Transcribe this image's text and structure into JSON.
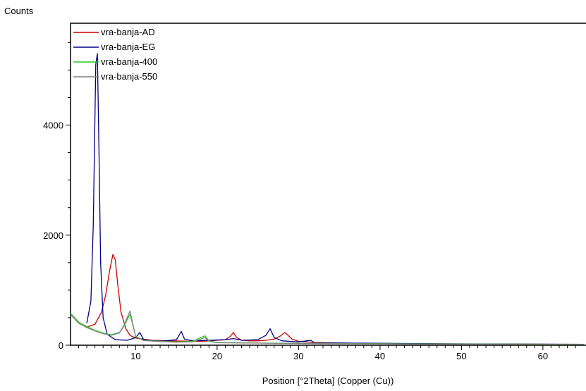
{
  "chart_data": {
    "type": "line",
    "title": "",
    "xlabel": "Position [°2Theta] (Copper (Cu))",
    "ylabel": "Counts",
    "xlim": [
      2,
      65
    ],
    "ylim": [
      0,
      5850
    ],
    "x_ticks": [
      10,
      20,
      30,
      40,
      50,
      60
    ],
    "y_ticks": [
      0,
      2000,
      4000
    ],
    "grid": false,
    "legend": "top-left",
    "series": [
      {
        "name": "vra-banja-AD",
        "color": "#cc0000",
        "x": [
          4.0,
          5.0,
          5.8,
          6.3,
          6.8,
          7.2,
          7.5,
          7.8,
          8.2,
          8.8,
          9.3,
          10.0,
          12.0,
          14.0,
          16.0,
          18.0,
          19.0,
          20.0,
          21.0,
          21.6,
          22.0,
          22.4,
          23.0,
          24.0,
          25.0,
          26.0,
          27.0,
          27.8,
          28.3,
          28.7,
          29.2,
          30.0,
          32.0,
          35.0,
          40.0,
          45.0,
          50.0,
          55.0,
          60.0,
          65.0
        ],
        "y": [
          330,
          380,
          600,
          900,
          1350,
          1650,
          1550,
          1100,
          600,
          300,
          180,
          130,
          90,
          80,
          75,
          70,
          80,
          90,
          100,
          160,
          230,
          140,
          90,
          80,
          80,
          90,
          110,
          170,
          230,
          180,
          110,
          70,
          50,
          40,
          30,
          25,
          22,
          20,
          18,
          15
        ]
      },
      {
        "name": "vra-banja-EG",
        "color": "#00008b",
        "x": [
          4.0,
          4.5,
          4.8,
          5.1,
          5.3,
          5.5,
          5.7,
          6.0,
          6.5,
          7.5,
          9.0,
          10.0,
          10.5,
          11.0,
          13.0,
          15.0,
          15.6,
          16.0,
          17.0,
          19.0,
          21.0,
          22.0,
          23.0,
          25.0,
          26.0,
          26.5,
          27.0,
          28.0,
          30.0,
          31.5,
          32.0,
          35.0,
          40.0,
          45.0,
          50.0,
          55.0,
          60.0,
          65.0
        ],
        "y": [
          400,
          800,
          2200,
          5100,
          5300,
          3500,
          1500,
          500,
          200,
          100,
          90,
          140,
          230,
          100,
          70,
          100,
          250,
          110,
          80,
          90,
          100,
          120,
          90,
          100,
          180,
          300,
          140,
          80,
          60,
          90,
          40,
          40,
          35,
          30,
          25,
          22,
          20,
          18
        ]
      },
      {
        "name": "vra-banja-400",
        "color": "#22cc22",
        "x": [
          2.0,
          3.0,
          4.0,
          5.0,
          6.0,
          7.0,
          8.0,
          8.6,
          9.0,
          9.3,
          9.6,
          10.0,
          11.0,
          13.0,
          15.0,
          17.0,
          18.0,
          18.5,
          19.0,
          20.0,
          25.0,
          30.0,
          35.0,
          40.0,
          45.0,
          50.0,
          55.0,
          60.0,
          65.0
        ],
        "y": [
          580,
          420,
          340,
          270,
          220,
          190,
          230,
          350,
          480,
          560,
          400,
          160,
          90,
          70,
          60,
          70,
          140,
          170,
          80,
          50,
          40,
          35,
          30,
          28,
          25,
          22,
          20,
          18,
          16
        ]
      },
      {
        "name": "vra-banja-550",
        "color": "#808080",
        "x": [
          2.0,
          3.0,
          4.0,
          5.0,
          6.0,
          7.0,
          8.0,
          8.6,
          9.0,
          9.3,
          9.6,
          10.0,
          11.0,
          13.0,
          15.0,
          17.0,
          18.0,
          18.5,
          19.0,
          20.0,
          25.0,
          30.0,
          35.0,
          40.0,
          45.0,
          50.0,
          55.0,
          60.0,
          65.0
        ],
        "y": [
          560,
          400,
          320,
          260,
          210,
          180,
          220,
          370,
          520,
          620,
          420,
          150,
          85,
          65,
          55,
          60,
          110,
          140,
          70,
          45,
          38,
          32,
          28,
          25,
          22,
          20,
          18,
          16,
          14
        ]
      }
    ]
  }
}
